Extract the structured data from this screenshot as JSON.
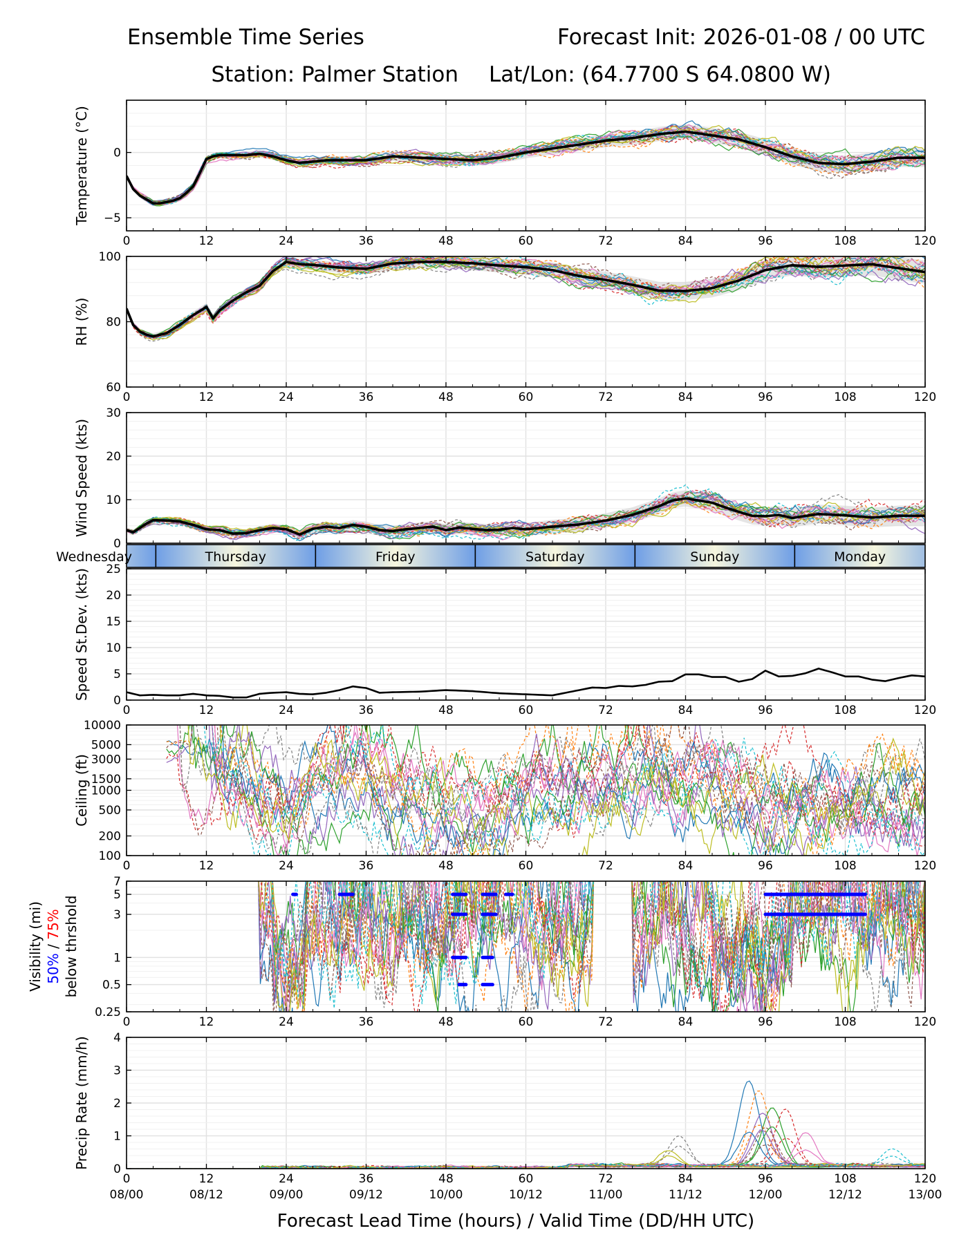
{
  "header": {
    "title_left": "Ensemble Time Series",
    "title_right": "Forecast Init: 2026-01-08 / 00 UTC",
    "station": "Station: Palmer Station",
    "latlon": "Lat/Lon: (64.7700 S 64.0800 W)"
  },
  "x_axis": {
    "label": "Forecast Lead Time (hours) / Valid Time (DD/HH UTC)",
    "range": [
      0,
      120
    ],
    "ticks": [
      0,
      12,
      24,
      36,
      48,
      60,
      72,
      84,
      96,
      108,
      120
    ],
    "tick_labels": [
      "0",
      "12",
      "24",
      "36",
      "48",
      "60",
      "72",
      "84",
      "96",
      "108",
      "120"
    ],
    "valid_time_labels": [
      "08/00",
      "08/12",
      "09/00",
      "09/12",
      "10/00",
      "10/12",
      "11/00",
      "11/12",
      "12/00",
      "12/12",
      "13/00"
    ]
  },
  "day_strip": {
    "days": [
      {
        "name": "Wednesday",
        "start": -20,
        "end": 4.4
      },
      {
        "name": "Thursday",
        "start": 4.4,
        "end": 28.4
      },
      {
        "name": "Friday",
        "start": 28.4,
        "end": 52.4
      },
      {
        "name": "Saturday",
        "start": 52.4,
        "end": 76.4
      },
      {
        "name": "Sunday",
        "start": 76.4,
        "end": 100.4
      },
      {
        "name": "Monday",
        "start": 100.4,
        "end": 124.4
      }
    ]
  },
  "colors": {
    "members": [
      "#1f77b4",
      "#ff7f0e",
      "#2ca02c",
      "#d62728",
      "#9467bd",
      "#8c564b",
      "#e377c2",
      "#7f7f7f",
      "#bcbd22",
      "#17becf"
    ],
    "mean": "#000000",
    "spread": "#cfcfcf",
    "vis50": "#0000ff",
    "vis75": "#ff0000",
    "day_blue": "#6e9ee6",
    "day_cream": "#f6f6de"
  },
  "chart_data": [
    {
      "id": "temperature",
      "type": "line",
      "ylabel": "Temperature (°C)",
      "ylim": [
        -6,
        4
      ],
      "yticks": [
        -5,
        0
      ],
      "ytick_labels": [
        "−5",
        "0"
      ],
      "mean": {
        "x": [
          0,
          1,
          2,
          3,
          4,
          5,
          6,
          7,
          8,
          9,
          10,
          11,
          12,
          13,
          14,
          16,
          18,
          20,
          22,
          24,
          26,
          28,
          30,
          32,
          34,
          36,
          40,
          44,
          48,
          52,
          56,
          60,
          64,
          68,
          72,
          76,
          80,
          84,
          88,
          92,
          96,
          100,
          104,
          108,
          112,
          116,
          120
        ],
        "y": [
          -1.8,
          -2.8,
          -3.3,
          -3.6,
          -3.9,
          -3.9,
          -3.8,
          -3.7,
          -3.5,
          -3.1,
          -2.6,
          -1.6,
          -0.5,
          -0.3,
          -0.2,
          -0.2,
          -0.2,
          -0.1,
          -0.3,
          -0.6,
          -0.8,
          -0.7,
          -0.6,
          -0.6,
          -0.6,
          -0.6,
          -0.3,
          -0.4,
          -0.5,
          -0.6,
          -0.4,
          0.0,
          0.3,
          0.6,
          0.9,
          1.1,
          1.4,
          1.6,
          1.3,
          1.0,
          0.4,
          -0.3,
          -0.8,
          -0.9,
          -0.7,
          -0.4,
          -0.4
        ]
      },
      "members": 20,
      "member_spread": 0.6
    },
    {
      "id": "rh",
      "type": "line",
      "ylabel": "RH (%)",
      "ylim": [
        60,
        100
      ],
      "yticks": [
        60,
        80,
        100
      ],
      "ytick_labels": [
        "60",
        "80",
        "100"
      ],
      "mean": {
        "x": [
          0,
          1,
          2,
          3,
          4,
          6,
          8,
          10,
          12,
          13,
          14,
          16,
          18,
          20,
          22,
          24,
          26,
          28,
          32,
          36,
          40,
          44,
          48,
          52,
          56,
          60,
          64,
          68,
          72,
          76,
          80,
          84,
          88,
          92,
          96,
          100,
          104,
          108,
          112,
          116,
          120
        ],
        "y": [
          84,
          79,
          77,
          76,
          75.5,
          76.5,
          79,
          82,
          84.5,
          81,
          83.5,
          86.5,
          89,
          91,
          95.5,
          98.3,
          97.6,
          97.4,
          96.6,
          96.2,
          97.8,
          98.3,
          98.3,
          97.9,
          97.2,
          96.7,
          95.8,
          94.0,
          92.8,
          91.3,
          89.5,
          89.4,
          90.3,
          92.6,
          95.8,
          97.3,
          96.8,
          97.2,
          97.6,
          96.4,
          95.2
        ]
      },
      "members": 20,
      "member_spread": 3.0
    },
    {
      "id": "wind_speed",
      "type": "line",
      "ylabel": "Wind Speed (kts)",
      "ylim": [
        0,
        30
      ],
      "yticks": [
        0,
        10,
        20,
        30
      ],
      "ytick_labels": [
        "0",
        "10",
        "20",
        "30"
      ],
      "mean": {
        "x": [
          0,
          1,
          2,
          3,
          4,
          6,
          8,
          10,
          12,
          14,
          16,
          18,
          20,
          22,
          24,
          26,
          28,
          30,
          32,
          34,
          36,
          38,
          40,
          42,
          44,
          46,
          48,
          50,
          52,
          54,
          56,
          58,
          60,
          64,
          68,
          72,
          76,
          80,
          82,
          84,
          86,
          88,
          90,
          92,
          94,
          96,
          98,
          100,
          104,
          108,
          112,
          116,
          120
        ],
        "y": [
          3,
          2.5,
          3.5,
          4.5,
          5.3,
          5.2,
          5.0,
          4.2,
          3.2,
          3.0,
          2.2,
          2.3,
          3.0,
          3.5,
          3.2,
          2.0,
          3.3,
          3.8,
          3.5,
          4.2,
          3.8,
          3.0,
          2.8,
          3.2,
          3.5,
          3.8,
          3.0,
          3.6,
          3.3,
          3.0,
          3.1,
          3.5,
          3.2,
          3.8,
          4.3,
          5.2,
          6.5,
          8.5,
          9.8,
          10.3,
          9.8,
          9.3,
          8.2,
          7.2,
          6.3,
          6.2,
          6.5,
          5.8,
          6.7,
          6.4,
          5.9,
          6.3,
          6.3
        ]
      },
      "members": 20,
      "member_spread": 2.0
    },
    {
      "id": "speed_stdev",
      "type": "line",
      "ylabel": "Speed St.Dev. (kts)",
      "ylim": [
        0,
        25
      ],
      "yticks": [
        0,
        5,
        10,
        15,
        20,
        25
      ],
      "ytick_labels": [
        "0",
        "5",
        "10",
        "15",
        "20",
        "25"
      ],
      "mean": {
        "x": [
          0,
          2,
          4,
          6,
          8,
          10,
          12,
          14,
          16,
          18,
          20,
          22,
          24,
          26,
          28,
          30,
          32,
          34,
          36,
          38,
          40,
          44,
          48,
          52,
          56,
          60,
          64,
          68,
          70,
          72,
          74,
          76,
          78,
          80,
          82,
          84,
          86,
          88,
          90,
          92,
          94,
          96,
          98,
          100,
          102,
          104,
          106,
          108,
          110,
          112,
          114,
          116,
          118,
          120
        ],
        "y": [
          1.5,
          0.9,
          1.0,
          0.9,
          0.9,
          1.2,
          0.9,
          0.8,
          0.5,
          0.5,
          1.2,
          1.4,
          1.5,
          1.2,
          1.1,
          1.4,
          1.9,
          2.6,
          2.3,
          1.4,
          1.5,
          1.6,
          1.9,
          1.7,
          1.3,
          1.1,
          0.9,
          1.9,
          2.4,
          2.3,
          2.7,
          2.6,
          2.9,
          3.5,
          3.6,
          4.9,
          4.9,
          4.4,
          4.4,
          3.5,
          4.0,
          5.6,
          4.5,
          4.6,
          5.1,
          6.0,
          5.3,
          4.5,
          4.5,
          3.9,
          3.6,
          4.2,
          4.7,
          4.5
        ]
      },
      "members": 0,
      "member_spread": 0
    },
    {
      "id": "ceiling",
      "type": "line",
      "ylabel": "Ceiling (ft)",
      "yscale": "log",
      "ylim": [
        100,
        10000
      ],
      "yticks": [
        100,
        200,
        500,
        1000,
        1500,
        3000,
        5000,
        10000
      ],
      "ytick_labels": [
        "100",
        "200",
        "500",
        "1000",
        "1500",
        "3000",
        "5000",
        "10000"
      ],
      "members": 20
    },
    {
      "id": "visibility",
      "type": "line",
      "ylabel": "Visibility (mi)",
      "ylabel_50": "50%",
      "ylabel_sep": " / ",
      "ylabel_75": "75%",
      "ylabel_sub": "below thrshold",
      "yscale": "log",
      "ylim": [
        0.25,
        7
      ],
      "yticks": [
        0.25,
        0.5,
        1,
        3,
        5,
        7
      ],
      "ytick_labels": [
        "0.25",
        "0.5",
        "1",
        "3",
        "5",
        "7"
      ],
      "members": 20,
      "threshold_50": [
        {
          "level": 5,
          "ranges": [
            [
              25,
              25.5
            ],
            [
              32,
              34
            ],
            [
              49,
              51
            ],
            [
              53.5,
              55.5
            ],
            [
              57,
              58
            ],
            [
              96,
              111
            ]
          ]
        },
        {
          "level": 3,
          "ranges": [
            [
              49,
              51
            ],
            [
              53.5,
              55.5
            ],
            [
              96,
              111
            ]
          ]
        },
        {
          "level": 1,
          "ranges": [
            [
              49,
              51
            ],
            [
              53.5,
              55
            ]
          ]
        },
        {
          "level": 0.5,
          "ranges": [
            [
              50,
              51
            ],
            [
              53.5,
              55
            ]
          ]
        }
      ]
    },
    {
      "id": "precip",
      "type": "line",
      "ylabel": "Precip Rate (mm/h)",
      "ylim": [
        0,
        4
      ],
      "yticks": [
        0,
        1,
        2,
        3,
        4
      ],
      "ytick_labels": [
        "0",
        "1",
        "2",
        "3",
        "4"
      ],
      "members": 20,
      "peaks": [
        {
          "center": 93.5,
          "height": 2.6
        },
        {
          "center": 95,
          "height": 2.3
        },
        {
          "center": 97,
          "height": 1.8
        },
        {
          "center": 99,
          "height": 1.7
        },
        {
          "center": 95.5,
          "height": 1.6
        },
        {
          "center": 96,
          "height": 1.2
        },
        {
          "center": 102,
          "height": 1.0
        },
        {
          "center": 83,
          "height": 0.95
        },
        {
          "center": 81.5,
          "height": 0.5
        },
        {
          "center": 115,
          "height": 0.55
        }
      ]
    }
  ]
}
